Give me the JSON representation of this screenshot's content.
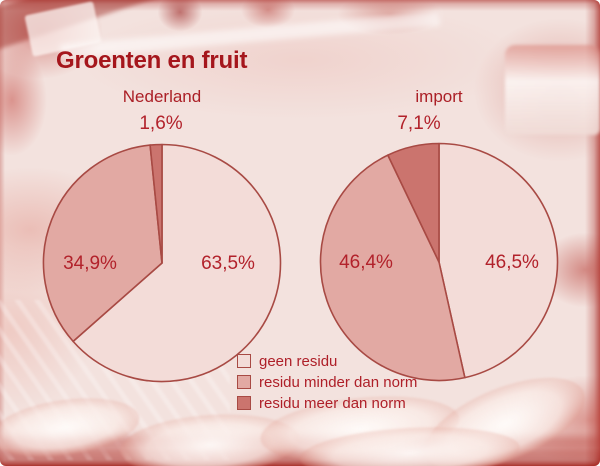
{
  "title": "Groenten en fruit",
  "chart_data": [
    {
      "type": "pie",
      "title": "Nederland",
      "categories": [
        "geen residu",
        "residu minder dan norm",
        "residu meer dan norm"
      ],
      "values": [
        63.5,
        34.9,
        1.6
      ],
      "value_labels": [
        "63,5%",
        "34,9%",
        "1,6%"
      ],
      "start_angle_deg": 0,
      "direction": "clockwise",
      "colors": [
        "#f3dcd8",
        "#e2a9a3",
        "#cb746e"
      ]
    },
    {
      "type": "pie",
      "title": "import",
      "categories": [
        "geen residu",
        "residu minder dan norm",
        "residu meer dan norm"
      ],
      "values": [
        46.5,
        46.4,
        7.1
      ],
      "value_labels": [
        "46,5%",
        "46,4%",
        "7,1%"
      ],
      "start_angle_deg": 0,
      "direction": "clockwise",
      "colors": [
        "#f3dcd8",
        "#e2a9a3",
        "#cb746e"
      ]
    }
  ],
  "legend": {
    "position": "bottom-center",
    "items": [
      {
        "label": "geen residu",
        "color": "#f3dcd8"
      },
      {
        "label": "residu minder dan norm",
        "color": "#e2a9a3"
      },
      {
        "label": "residu meer dan norm",
        "color": "#cb746e"
      }
    ]
  },
  "styles": {
    "outline_color": "#a84a44",
    "text_color": "#b2222b",
    "title_color": "#a5161c"
  }
}
